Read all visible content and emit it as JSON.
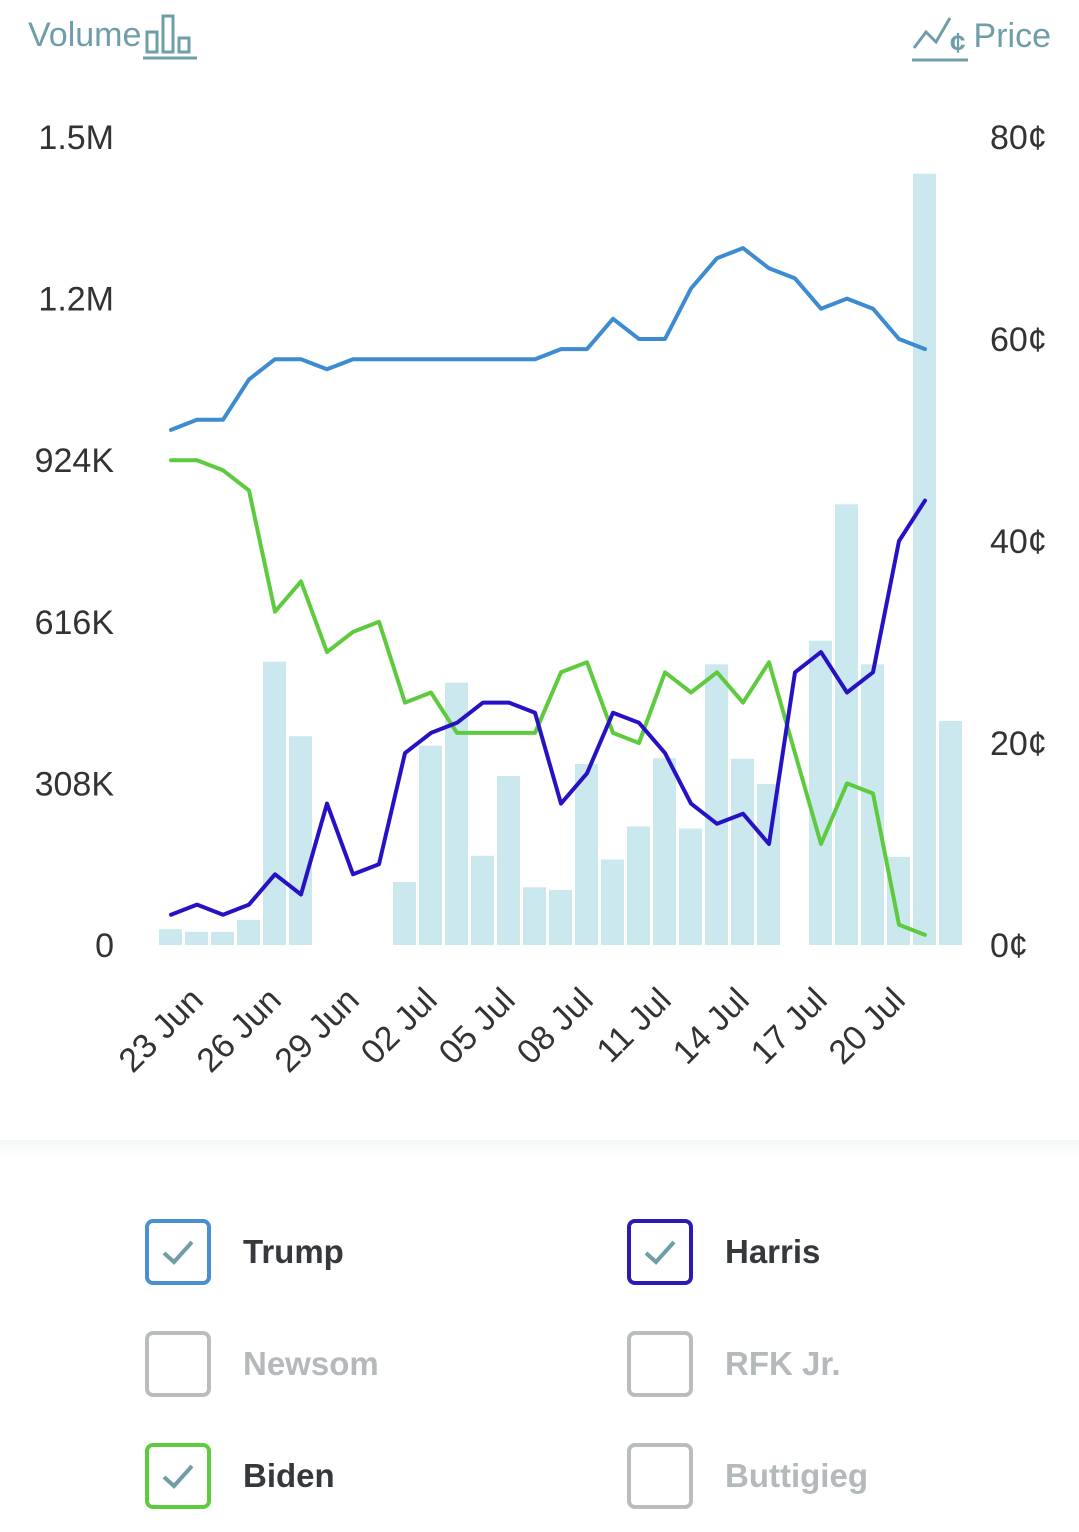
{
  "header": {
    "volume_label": "Volume",
    "price_label": "Price",
    "volume_icon": "bar-chart-icon",
    "price_icon": "price-line-icon"
  },
  "colors": {
    "volume_bar": "#cce8ef",
    "axis_text": "#333333",
    "toggle_text": "#6f9ea8"
  },
  "chart_data": {
    "type": "bar+line",
    "dates": [
      "22 Jun",
      "23 Jun",
      "24 Jun",
      "25 Jun",
      "26 Jun",
      "27 Jun",
      "28 Jun",
      "29 Jun",
      "30 Jun",
      "01 Jul",
      "02 Jul",
      "03 Jul",
      "04 Jul",
      "05 Jul",
      "06 Jul",
      "07 Jul",
      "08 Jul",
      "09 Jul",
      "10 Jul",
      "11 Jul",
      "12 Jul",
      "13 Jul",
      "14 Jul",
      "15 Jul",
      "16 Jul",
      "17 Jul",
      "18 Jul",
      "19 Jul",
      "20 Jul",
      "21 Jul",
      "22 Jul"
    ],
    "x_tick_labels": [
      "23 Jun",
      "26 Jun",
      "29 Jun",
      "02 Jul",
      "05 Jul",
      "08 Jul",
      "11 Jul",
      "14 Jul",
      "17 Jul",
      "20 Jul"
    ],
    "volume": {
      "axis": "left",
      "ticks": [
        "0",
        "308K",
        "616K",
        "924K",
        "1.2M",
        "1.5M"
      ],
      "ylim": [
        0,
        1540000
      ],
      "values": [
        30000,
        25000,
        25000,
        48000,
        540000,
        398000,
        0,
        0,
        0,
        120000,
        380000,
        500000,
        170000,
        322000,
        110000,
        105000,
        345000,
        163000,
        226000,
        356000,
        222000,
        535000,
        355000,
        307000,
        0,
        580000,
        840000,
        535000,
        168000,
        1470000,
        427000
      ]
    },
    "series": [
      {
        "name": "Trump",
        "color": "#3d8bd0",
        "axis": "right",
        "values": [
          51,
          52,
          52,
          56,
          58,
          58,
          57,
          58,
          58,
          58,
          58,
          58,
          58,
          58,
          58,
          59,
          59,
          62,
          60,
          60,
          65,
          68,
          69,
          67,
          66,
          63,
          64,
          63,
          60,
          59,
          null
        ]
      },
      {
        "name": "Biden",
        "color": "#5ecb3f",
        "axis": "right",
        "values": [
          48,
          48,
          47,
          45,
          33,
          36,
          29,
          31,
          32,
          24,
          25,
          21,
          21,
          21,
          21,
          27,
          28,
          21,
          20,
          27,
          25,
          27,
          24,
          28,
          19,
          10,
          16,
          15,
          2,
          1,
          null
        ]
      },
      {
        "name": "Harris",
        "color": "#2612c4",
        "axis": "right",
        "values": [
          3,
          4,
          3,
          4,
          7,
          5,
          14,
          7,
          8,
          19,
          21,
          22,
          24,
          24,
          23,
          14,
          17,
          23,
          22,
          19,
          14,
          12,
          13,
          10,
          27,
          29,
          25,
          27,
          40,
          44,
          null
        ]
      }
    ],
    "price_axis": {
      "ticks": [
        "0¢",
        "20¢",
        "40¢",
        "60¢",
        "80¢"
      ],
      "ylim": [
        0,
        80
      ]
    }
  },
  "legend": [
    {
      "name": "Trump",
      "checked": true,
      "color": "#4a8fcf"
    },
    {
      "name": "Harris",
      "checked": true,
      "color": "#2a1bb8"
    },
    {
      "name": "Newsom",
      "checked": false,
      "color": "#b9bdbb"
    },
    {
      "name": "RFK Jr.",
      "checked": false,
      "color": "#b9bdbb"
    },
    {
      "name": "Biden",
      "checked": true,
      "color": "#5ecb3f"
    },
    {
      "name": "Buttigieg",
      "checked": false,
      "color": "#b9bdbb"
    }
  ]
}
